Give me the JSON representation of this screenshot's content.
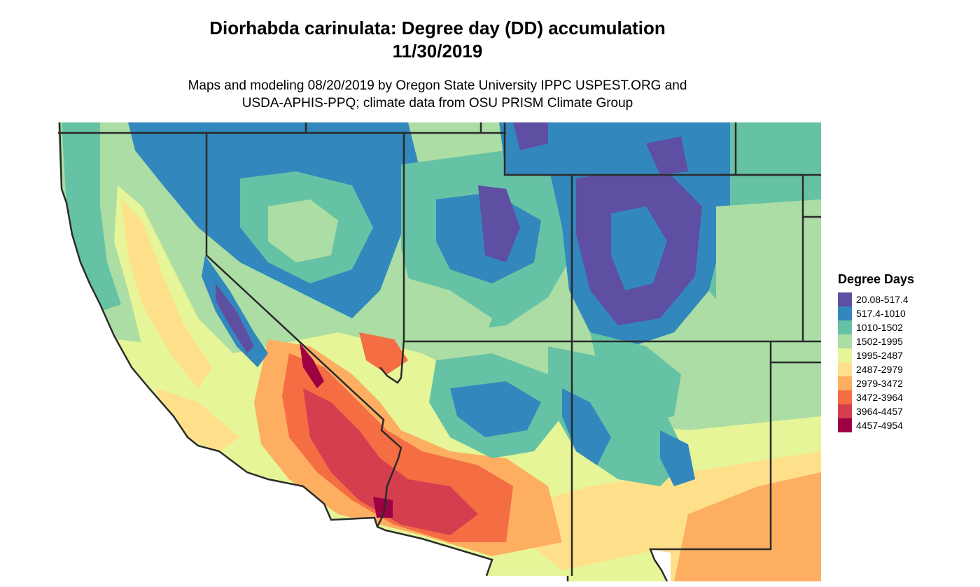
{
  "title": {
    "line1": "Diorhabda carinulata: Degree day (DD) accumulation",
    "line2": "11/30/2019"
  },
  "subtitle": {
    "line1": "Maps and modeling 08/20/2019 by Oregon State University IPPC USPEST.ORG and",
    "line2": "USDA-APHIS-PPQ; climate data from OSU PRISM Climate Group"
  },
  "legend": {
    "title": "Degree Days",
    "items": [
      {
        "label": "20.08-517.4",
        "color": "#5e4fa2"
      },
      {
        "label": "517.4-1010",
        "color": "#3288bd"
      },
      {
        "label": "1010-1502",
        "color": "#66c2a5"
      },
      {
        "label": "1502-1995",
        "color": "#abdda4"
      },
      {
        "label": "1995-2487",
        "color": "#e6f598"
      },
      {
        "label": "2487-2979",
        "color": "#fee08b"
      },
      {
        "label": "2979-3472",
        "color": "#fdae61"
      },
      {
        "label": "3472-3964",
        "color": "#f46d43"
      },
      {
        "label": "3964-4457",
        "color": "#d53e4f"
      },
      {
        "label": "4457-4954",
        "color": "#9e0142"
      }
    ]
  },
  "map": {
    "region": "Southwestern United States",
    "boundary_color": "#2b2b2b"
  }
}
